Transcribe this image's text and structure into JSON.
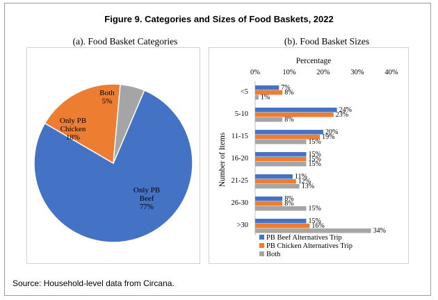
{
  "figure_title": "Figure 9. Categories and Sizes of Food Baskets, 2022",
  "source": "Source: Household-level data from Circana.",
  "colors": {
    "blue": "#4472c4",
    "orange": "#ed7d31",
    "gray": "#a5a5a5"
  },
  "chart_data": [
    {
      "type": "pie",
      "title": "(a). Food Basket Categories",
      "slices": [
        {
          "label": [
            "Only  PB",
            "Beef"
          ],
          "value": 77,
          "value_label": "77%",
          "color": "#4472c4"
        },
        {
          "label": [
            "Only PB",
            "Chicken"
          ],
          "value": 18,
          "value_label": "18%",
          "color": "#ed7d31"
        },
        {
          "label": [
            "Both"
          ],
          "value": 5,
          "value_label": "5%",
          "color": "#a5a5a5"
        }
      ]
    },
    {
      "type": "bar",
      "orientation": "horizontal",
      "title": "(b). Food Basket Sizes",
      "xlabel": "Percentage",
      "ylabel": "Number of Items",
      "xlim": [
        0,
        40
      ],
      "xticks": [
        "0%",
        "10%",
        "20%",
        "30%",
        "40%"
      ],
      "categories": [
        "<5",
        "5-10",
        "11-15",
        "16-20",
        "21-25",
        "26-30",
        ">30"
      ],
      "legend_position": "bottom-left",
      "series": [
        {
          "name": "PB Beef Alternatives Trip",
          "color": "#4472c4",
          "values": [
            7,
            24,
            20,
            15,
            11,
            8,
            15
          ]
        },
        {
          "name": "PB Chicken Alternatives Trip",
          "color": "#ed7d31",
          "values": [
            8,
            23,
            19,
            15,
            12,
            8,
            16
          ]
        },
        {
          "name": "Both",
          "color": "#a5a5a5",
          "values": [
            1,
            8,
            15,
            15,
            13,
            15,
            34
          ]
        }
      ]
    }
  ]
}
